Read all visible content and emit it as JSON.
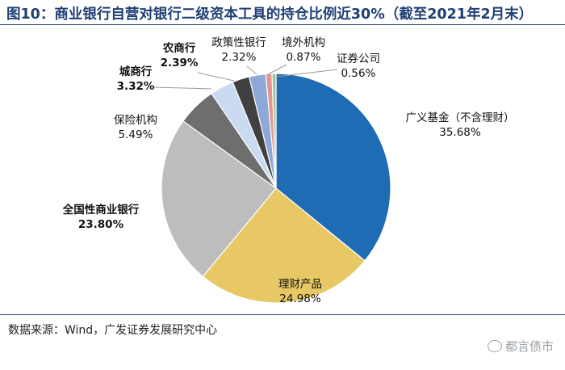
{
  "title": "图10：商业银行自营对银行二级资本工具的持仓比例近30%（截至2021年2月末）",
  "source": "数据来源：Wind，广发证券发展研究中心",
  "watermark": "都言债市",
  "watermark_icon": "wechat-icon",
  "colors": {
    "title": "#1f3f73",
    "rule": "#3a4f7a"
  },
  "chart_data": {
    "type": "pie",
    "unit": "%",
    "slices": [
      {
        "label": "广义基金（不含理财）",
        "value": 35.68,
        "display": "35.68%",
        "color": "#1f6bb4",
        "bold": false
      },
      {
        "label": "理财产品",
        "value": 24.98,
        "display": "24.98%",
        "color": "#e8c864",
        "bold": false
      },
      {
        "label": "全国性商业银行",
        "value": 23.8,
        "display": "23.80%",
        "color": "#bdbdbd",
        "bold": true
      },
      {
        "label": "保险机构",
        "value": 5.49,
        "display": "5.49%",
        "color": "#6e6e6e",
        "bold": false
      },
      {
        "label": "城商行",
        "value": 3.32,
        "display": "3.32%",
        "color": "#c9daf1",
        "bold": true
      },
      {
        "label": "农商行",
        "value": 2.39,
        "display": "2.39%",
        "color": "#404040",
        "bold": true
      },
      {
        "label": "政策性银行",
        "value": 2.32,
        "display": "2.32%",
        "color": "#8ea9d8",
        "bold": false
      },
      {
        "label": "境外机构",
        "value": 0.87,
        "display": "0.87%",
        "color": "#e39595",
        "bold": false
      },
      {
        "label": "证券公司",
        "value": 0.56,
        "display": "0.56%",
        "color": "#9fc493",
        "bold": false
      }
    ]
  }
}
